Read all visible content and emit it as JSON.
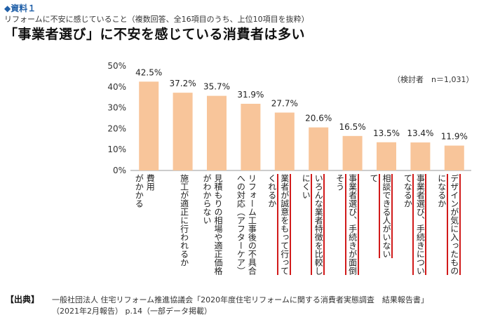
{
  "label_tag": "◆資料１",
  "subtitle": "リフォームに不安に感じていること（複数回答、全16項目のうち、上位10項目を抜粋）",
  "headline": "「事業者選び」に不安を感じている消費者は多い",
  "note": "（検討者　n＝1,031）",
  "source": {
    "tag": "【出典】",
    "line1": "一般社団法人 住宅リフォーム推進協議会「2020年度住宅リフォームに関する消費者実態調査　結果報告書」",
    "line2": "（2021年2月報告） p.14（一部データ掲載）"
  },
  "colors": {
    "bar": "#f8c59a",
    "highlight": "#d11a1a",
    "axis": "#999999",
    "grid": "#e6e6e6"
  },
  "chart_data": {
    "type": "bar",
    "categories": [
      [
        "費用",
        "がかかる"
      ],
      [
        "施工が適正に行われるか"
      ],
      [
        "見積もりの相場や適正価格",
        "がわからない"
      ],
      [
        "リフォーム工事後の不具合",
        "への対応（アフターケア）"
      ],
      [
        "業者が誠意をもって行って",
        "くれるか"
      ],
      [
        "いろんな業者特徴を比較し",
        "にくい"
      ],
      [
        "事業者選び、手続きが面倒",
        "そう"
      ],
      [
        "相談できる人がいない",
        "て"
      ],
      [
        "事業者選び、手続きについ",
        "てなるか"
      ],
      [
        "デザインが気に入ったもの",
        "になるか"
      ]
    ],
    "values": [
      42.5,
      37.2,
      35.7,
      31.9,
      27.7,
      20.6,
      16.5,
      13.5,
      13.4,
      11.9
    ],
    "value_labels": [
      "42.5%",
      "37.2%",
      "35.7%",
      "31.9%",
      "27.7%",
      "20.6%",
      "16.5%",
      "13.5%",
      "13.4%",
      "11.9%"
    ],
    "yticks": [
      "0%",
      "10%",
      "20%",
      "30%",
      "40%",
      "50%"
    ],
    "ylim": [
      0,
      50
    ],
    "highlighted": [
      4,
      5,
      6,
      7,
      8,
      9
    ],
    "grid": false
  }
}
